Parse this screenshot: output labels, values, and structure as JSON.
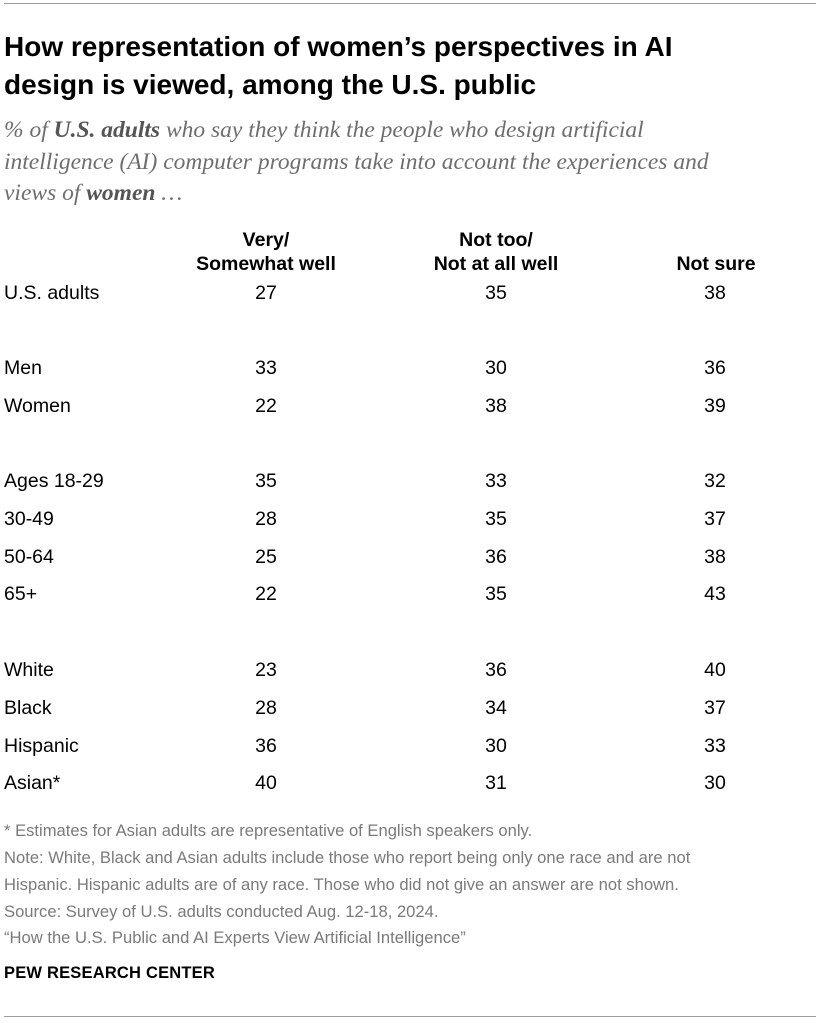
{
  "header": {
    "title_line1": "How representation of women’s perspectives in AI",
    "title_line2": "design is viewed, among the U.S. public",
    "subtitle": {
      "pct": "% of ",
      "bold1": "U.S. adults",
      "mid1": " who say they think the people who design artificial",
      "line2": "intelligence (AI) computer programs take into account the experiences and",
      "line3_pre": "views of ",
      "bold2": "women",
      "line3_post": " …"
    }
  },
  "chart_data": {
    "type": "table",
    "columns": [
      {
        "line1": "Very/",
        "line2": "Somewhat well"
      },
      {
        "line1": "Not too/",
        "line2": "Not at all well"
      },
      {
        "line1": "",
        "line2": "Not sure"
      }
    ],
    "rows": [
      {
        "label": "U.S. adults",
        "values": [
          "27",
          "35",
          "38"
        ]
      },
      {
        "label": "Men",
        "values": [
          "33",
          "30",
          "36"
        ]
      },
      {
        "label": "Women",
        "values": [
          "22",
          "38",
          "39"
        ]
      },
      {
        "label": "Ages 18-29",
        "values": [
          "35",
          "33",
          "32"
        ]
      },
      {
        "label": "30-49",
        "values": [
          "28",
          "35",
          "37"
        ]
      },
      {
        "label": "50-64",
        "values": [
          "25",
          "36",
          "38"
        ]
      },
      {
        "label": "65+",
        "values": [
          "22",
          "35",
          "43"
        ]
      },
      {
        "label": "White",
        "values": [
          "23",
          "36",
          "40"
        ]
      },
      {
        "label": "Black",
        "values": [
          "28",
          "34",
          "37"
        ]
      },
      {
        "label": "Hispanic",
        "values": [
          "36",
          "30",
          "33"
        ]
      },
      {
        "label": "Asian*",
        "values": [
          "40",
          "31",
          "30"
        ]
      }
    ]
  },
  "footer": {
    "asterisk_note": "* Estimates for Asian adults are representative of English speakers only.",
    "note_line1": "Note: White, Black and Asian adults include those who report being only one race and are not",
    "note_line2": "Hispanic. Hispanic adults are of any race. Those who did not give an answer are not shown.",
    "source": "Source: Survey of U.S. adults conducted Aug. 12-18, 2024.",
    "report": "“How the U.S. Public and AI Experts View Artificial Intelligence”",
    "brand": "PEW RESEARCH CENTER"
  }
}
